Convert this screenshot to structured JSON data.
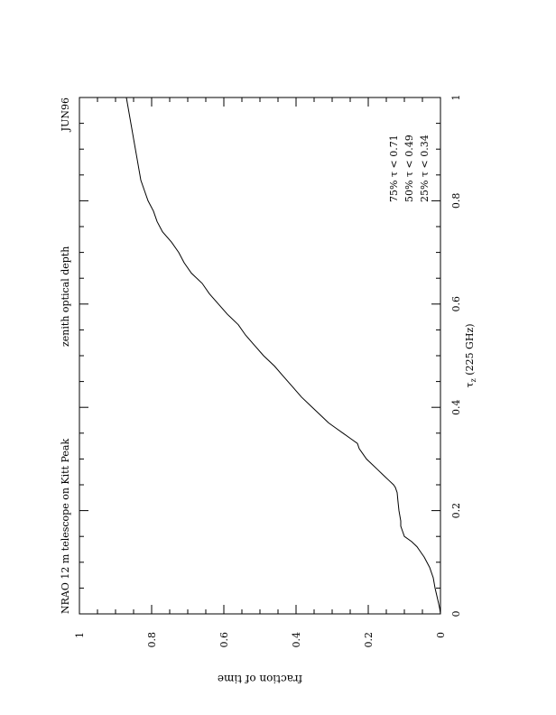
{
  "chart_data": {
    "type": "line",
    "orientation": "rotated-90-clockwise",
    "title_left": "NRAO 12 m telescope on Kitt Peak",
    "title_center": "zenith optical depth",
    "title_right": "JUN96",
    "xlabel": "τ_z (225 GHz)",
    "xlabel_main": "τ",
    "xlabel_sub": "z",
    "xlabel_rest": " (225 GHz)",
    "ylabel": "fraction of time",
    "xlim": [
      0,
      1
    ],
    "ylim": [
      0,
      1
    ],
    "x_ticks": [
      0,
      0.2,
      0.4,
      0.6,
      0.8,
      1
    ],
    "x_tick_labels": [
      "0",
      "0.2",
      "0.4",
      "0.6",
      "0.8",
      "1"
    ],
    "y_ticks": [
      0,
      0.2,
      0.4,
      0.6,
      0.8,
      1
    ],
    "y_tick_labels": [
      "0",
      "0.2",
      "0.4",
      "0.6",
      "0.8",
      "1"
    ],
    "annotations": [
      "75% τ < 0.71",
      "50% τ < 0.49",
      "25% τ < 0.34"
    ],
    "grid": false,
    "series": [
      {
        "x": [
          0.0,
          0.01,
          0.02,
          0.035,
          0.05,
          0.07,
          0.09,
          0.11,
          0.12,
          0.13,
          0.14,
          0.15,
          0.16,
          0.17,
          0.18,
          0.2,
          0.22,
          0.235,
          0.245,
          0.25,
          0.26,
          0.27,
          0.28,
          0.29,
          0.3,
          0.31,
          0.32,
          0.33,
          0.34,
          0.35,
          0.36,
          0.37,
          0.38,
          0.4,
          0.42,
          0.44,
          0.46,
          0.48,
          0.5,
          0.52,
          0.54,
          0.56,
          0.58,
          0.6,
          0.62,
          0.64,
          0.66,
          0.68,
          0.7,
          0.72,
          0.74,
          0.76,
          0.78,
          0.8,
          0.82,
          0.84,
          0.86,
          0.88,
          0.9,
          0.92,
          0.94,
          0.96,
          0.98,
          1.0
        ],
        "y": [
          0.0,
          0.002,
          0.005,
          0.01,
          0.015,
          0.02,
          0.03,
          0.045,
          0.055,
          0.065,
          0.08,
          0.1,
          0.105,
          0.11,
          0.11,
          0.115,
          0.118,
          0.12,
          0.125,
          0.13,
          0.145,
          0.16,
          0.175,
          0.19,
          0.205,
          0.215,
          0.225,
          0.23,
          0.25,
          0.27,
          0.29,
          0.31,
          0.325,
          0.355,
          0.385,
          0.41,
          0.435,
          0.46,
          0.49,
          0.515,
          0.54,
          0.56,
          0.59,
          0.615,
          0.64,
          0.66,
          0.69,
          0.71,
          0.725,
          0.745,
          0.77,
          0.785,
          0.795,
          0.81,
          0.82,
          0.83,
          0.835,
          0.84,
          0.845,
          0.85,
          0.855,
          0.86,
          0.865,
          0.87
        ]
      }
    ]
  }
}
